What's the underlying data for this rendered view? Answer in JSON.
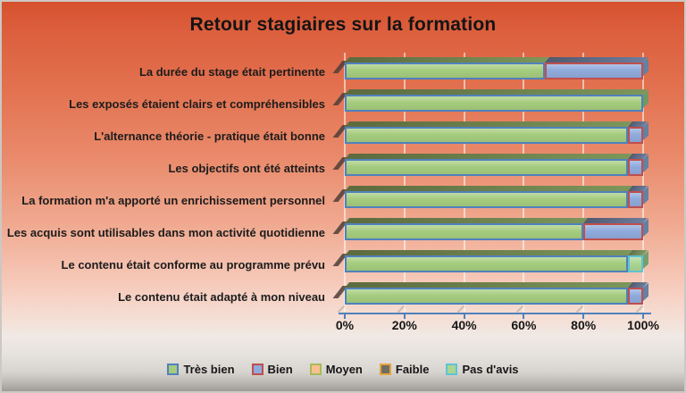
{
  "chart_data": {
    "type": "bar",
    "orientation": "horizontal",
    "stacked": true,
    "stacked_total": 100,
    "style": "3d",
    "title": "Retour stagiaires sur la formation",
    "categories": [
      "La durée du stage était pertinente",
      "Les exposés étaient clairs et compréhensibles",
      "L'alternance théorie - pratique était bonne",
      "Les objectifs ont été atteints",
      "La formation m'a apporté un enrichissement personnel",
      "Les acquis sont utilisables dans mon activité quotidienne",
      "Le contenu était conforme au programme prévu",
      "Le contenu était adapté à mon niveau"
    ],
    "series": [
      {
        "name": "Très bien",
        "fill": "#a5cc7e",
        "border": "#4f81bd",
        "values": [
          67,
          100,
          95,
          95,
          95,
          80,
          95,
          95
        ]
      },
      {
        "name": "Bien",
        "fill": "#8faadc",
        "border": "#bf4f4c",
        "values": [
          33,
          0,
          5,
          5,
          5,
          20,
          0,
          5
        ]
      },
      {
        "name": "Moyen",
        "fill": "#fac090",
        "border": "#a3bd57",
        "values": [
          0,
          0,
          0,
          0,
          0,
          0,
          0,
          0
        ]
      },
      {
        "name": "Faible",
        "fill": "#6e6e62",
        "border": "#e5a33c",
        "values": [
          0,
          0,
          0,
          0,
          0,
          0,
          0,
          0
        ]
      },
      {
        "name": "Pas d'avis",
        "fill": "#abd592",
        "border": "#5fc3d4",
        "values": [
          0,
          0,
          0,
          0,
          0,
          0,
          5,
          0
        ]
      }
    ],
    "x_axis": {
      "min": 0,
      "max": 100,
      "ticks": [
        "0%",
        "20%",
        "40%",
        "60%",
        "80%",
        "100%"
      ]
    },
    "legend": {
      "position": "bottom",
      "entries": [
        "Très bien",
        "Bien",
        "Moyen",
        "Faible",
        "Pas d'avis"
      ]
    },
    "grid": true,
    "axis_color": "#4f81bd"
  }
}
